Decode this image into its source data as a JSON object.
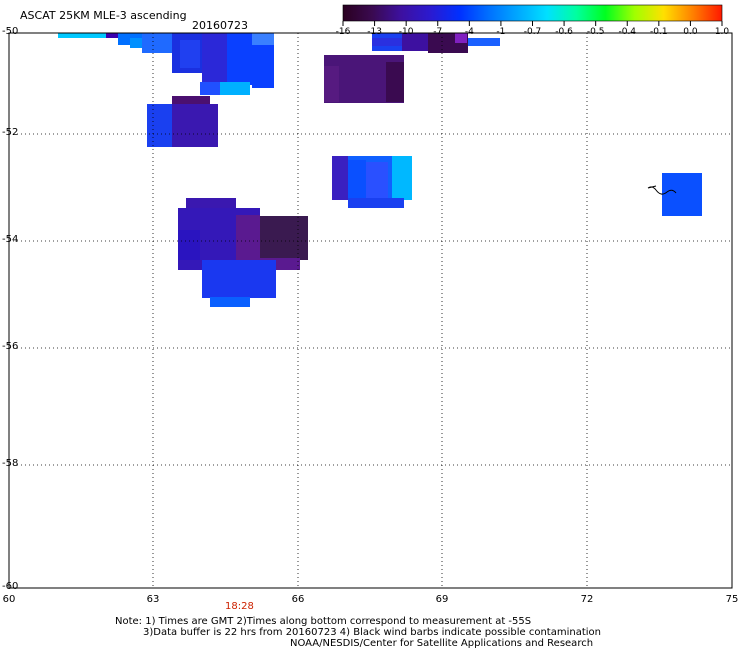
{
  "header": {
    "title": "ASCAT 25KM MLE-3 ascending",
    "date": "20160723"
  },
  "colorbar": {
    "ticks": [
      "-16",
      "-13",
      "-10",
      "-7",
      "-4",
      "-1",
      "-0.7",
      "-0.6",
      "-0.5",
      "-0.4",
      "-0.1",
      "0.0",
      "1.0"
    ],
    "colors": [
      "#2a0020",
      "#3a0a50",
      "#3d10a0",
      "#2b1ad0",
      "#0030ff",
      "#0070ff",
      "#00a8ff",
      "#00e0ff",
      "#00ffa0",
      "#00ff20",
      "#a0ff00",
      "#ffe000",
      "#ff8000",
      "#ff1800"
    ]
  },
  "axes": {
    "lat_labels": [
      "-50",
      "-52",
      "-54",
      "-56",
      "-58",
      "-60"
    ],
    "lon_labels": [
      "60",
      "63",
      "66",
      "69",
      "72",
      "75"
    ]
  },
  "time_label": {
    "text": "18:28",
    "color": "#cc2200"
  },
  "notes": {
    "line1": "Note: 1) Times are GMT 2)Times along bottom correspond to measurement at -55S",
    "line2": "3)Data buffer is 22 hrs from 20160723 4) Black wind barbs indicate possible contamination",
    "line3": "NOAA/NESDIS/Center for Satellite Applications and Research"
  }
}
